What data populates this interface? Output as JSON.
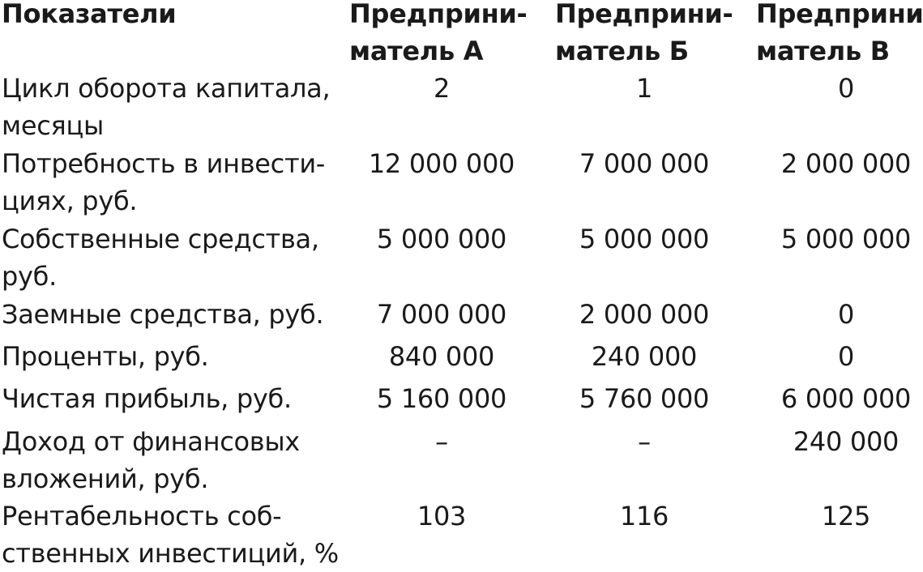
{
  "header": {
    "indicator": "Показатели",
    "col_a": "Предприни-\nматель А",
    "col_b": "Предприни-\nматель Б",
    "col_c": "Предприни-\nматель В"
  },
  "rows": [
    {
      "label": "Цикл оборота капитала,\nмесяцы",
      "a": "2",
      "b": "1",
      "c": "0"
    },
    {
      "label": "Потребность в инвести-\nциях, руб.",
      "a": "12 000 000",
      "b": "7 000 000",
      "c": "2 000 000"
    },
    {
      "label": "Собственные средства,\nруб.",
      "a": "5 000 000",
      "b": "5 000 000",
      "c": "5 000 000"
    },
    {
      "label": "Заемные средства, руб.",
      "a": "7 000 000",
      "b": "2 000 000",
      "c": "0"
    },
    {
      "label": "Проценты, руб.",
      "a": "840 000",
      "b": "240 000",
      "c": "0"
    },
    {
      "label": "Чистая прибыль, руб.",
      "a": "5 160 000",
      "b": "5 760 000",
      "c": "6 000 000"
    },
    {
      "label": "Доход от финансовых\nвложений, руб.",
      "a": "–",
      "b": "–",
      "c": "240 000"
    },
    {
      "label": "Рентабельность соб-\nственных инвестиций, %",
      "a": "103",
      "b": "116",
      "c": "125"
    }
  ]
}
